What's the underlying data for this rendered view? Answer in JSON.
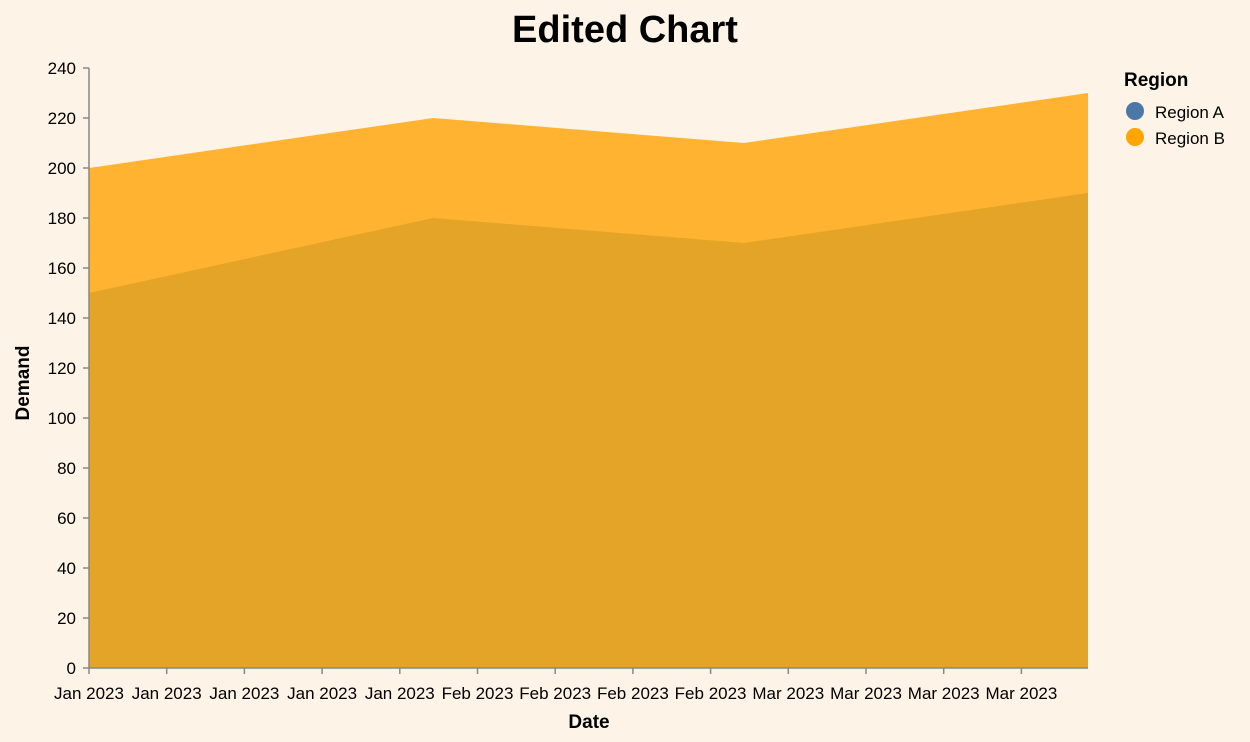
{
  "chart_data": {
    "type": "area",
    "title": "Edited Chart",
    "xlabel": "Date",
    "ylabel": "Demand",
    "ylim": [
      0,
      240
    ],
    "y_ticks": [
      0,
      20,
      40,
      60,
      80,
      100,
      120,
      140,
      160,
      180,
      200,
      220,
      240
    ],
    "x_tick_labels": [
      "Jan 2023",
      "Jan 2023",
      "Jan 2023",
      "Jan 2023",
      "Jan 2023",
      "Feb 2023",
      "Feb 2023",
      "Feb 2023",
      "Feb 2023",
      "Mar 2023",
      "Mar 2023",
      "Mar 2023",
      "Mar 2023"
    ],
    "x_tick_dates": [
      "2023-01-01",
      "2023-01-08",
      "2023-01-15",
      "2023-01-22",
      "2023-01-29",
      "2023-02-05",
      "2023-02-12",
      "2023-02-19",
      "2023-02-26",
      "2023-03-05",
      "2023-03-12",
      "2023-03-19",
      "2023-03-26"
    ],
    "x_domain": [
      "2023-01-01",
      "2023-04-01"
    ],
    "x": [
      "2023-01-01",
      "2023-02-01",
      "2023-03-01",
      "2023-04-01"
    ],
    "series": [
      {
        "name": "Region A",
        "values": [
          150,
          180,
          170,
          190
        ],
        "color": "#4c78a8"
      },
      {
        "name": "Region B",
        "values": [
          200,
          220,
          210,
          230
        ],
        "color": "#ffa500"
      }
    ],
    "area_fill": {
      "lower_band": "#e3a427",
      "upper_band": "#ffb331"
    },
    "legend": {
      "title": "Region",
      "placement": "top-right"
    },
    "grid": false
  }
}
